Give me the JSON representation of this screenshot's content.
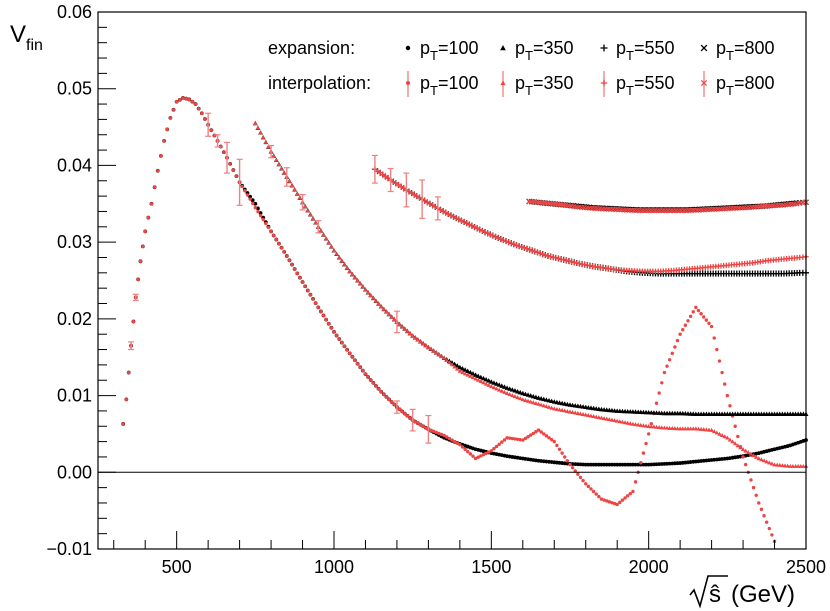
{
  "chart_data": {
    "type": "scatter",
    "title": "",
    "ylabel": "V_fin",
    "ylabel_main": "V",
    "ylabel_sub": "fin",
    "xlabel": "√ŝ (GeV)",
    "xlabel_radical_arg": "ŝ",
    "xlabel_unit": "(GeV)",
    "xlim": [
      250,
      2500
    ],
    "ylim": [
      -0.01,
      0.06
    ],
    "xticks": [
      500,
      1000,
      1500,
      2000,
      2500
    ],
    "xtick_labels": [
      "500",
      "1000",
      "1500",
      "2000",
      "2500"
    ],
    "yticks": [
      -0.01,
      0.0,
      0.01,
      0.02,
      0.03,
      0.04,
      0.05,
      0.06
    ],
    "ytick_labels": [
      "−0.01",
      "0.00",
      "0.01",
      "0.02",
      "0.03",
      "0.04",
      "0.05",
      "0.06"
    ],
    "zero_line": true,
    "legend": {
      "position": "top-right",
      "row1_label": "expansion:",
      "row2_label": "interpolation:",
      "entry_prefix": "p",
      "entry_sub": "T",
      "entries": [
        "=100",
        "=350",
        "=550",
        "=800"
      ]
    },
    "colors": {
      "expansion": "#000000",
      "interpolation": "#ee4444",
      "errorbar": "#f08080"
    },
    "series": [
      {
        "name": "expansion pT=100",
        "group": "expansion",
        "marker": "circle",
        "x": [
          330,
          340,
          355,
          370,
          385,
          400,
          420,
          440,
          460,
          480,
          500,
          520,
          540,
          560,
          580,
          600,
          630,
          660,
          700,
          750,
          800,
          850,
          900,
          950,
          1000,
          1050,
          1100,
          1150,
          1200,
          1250,
          1300,
          1350,
          1400,
          1450,
          1500,
          1550,
          1600,
          1650,
          1700,
          1750,
          1800,
          1850,
          1900,
          1950,
          2000,
          2050,
          2100,
          2150,
          2200,
          2250,
          2300,
          2350,
          2400,
          2450,
          2500
        ],
        "y": [
          0.0063,
          0.0095,
          0.0165,
          0.0228,
          0.0275,
          0.0314,
          0.035,
          0.0393,
          0.0432,
          0.0462,
          0.0483,
          0.0488,
          0.0486,
          0.048,
          0.0468,
          0.0453,
          0.0432,
          0.041,
          0.0378,
          0.035,
          0.0314,
          0.0282,
          0.0248,
          0.0215,
          0.0183,
          0.0155,
          0.0128,
          0.0105,
          0.0085,
          0.0068,
          0.0056,
          0.0045,
          0.0037,
          0.003,
          0.0025,
          0.0021,
          0.0018,
          0.0015,
          0.0013,
          0.0011,
          0.001,
          0.001,
          0.001,
          0.001,
          0.001,
          0.0011,
          0.0012,
          0.0014,
          0.0016,
          0.0018,
          0.0021,
          0.0025,
          0.003,
          0.0035,
          0.0042
        ]
      },
      {
        "name": "interpolation pT=100",
        "group": "interpolation",
        "marker": "circle",
        "x": [
          330,
          340,
          355,
          370,
          385,
          400,
          420,
          440,
          460,
          480,
          500,
          520,
          540,
          560,
          580,
          600,
          630,
          660,
          700,
          750,
          800,
          850,
          900,
          950,
          1000,
          1050,
          1100,
          1150,
          1200,
          1250,
          1300,
          1350,
          1400,
          1450,
          1500,
          1550,
          1600,
          1650,
          1700,
          1750,
          1800,
          1850,
          1900,
          1950,
          2000,
          2050,
          2100,
          2150,
          2200,
          2250,
          2300,
          2350,
          2400
        ],
        "y": [
          0.0063,
          0.0095,
          0.0165,
          0.0228,
          0.0275,
          0.0314,
          0.035,
          0.0393,
          0.0432,
          0.0462,
          0.0483,
          0.0488,
          0.0486,
          0.048,
          0.0468,
          0.0453,
          0.0432,
          0.041,
          0.0378,
          0.0345,
          0.0314,
          0.0282,
          0.0248,
          0.0215,
          0.0183,
          0.0155,
          0.0128,
          0.0105,
          0.0085,
          0.0068,
          0.0056,
          0.0048,
          0.0036,
          0.0018,
          0.0028,
          0.0045,
          0.0042,
          0.0055,
          0.004,
          0.001,
          -0.0015,
          -0.0035,
          -0.0042,
          -0.0025,
          0.005,
          0.013,
          0.018,
          0.0215,
          0.019,
          0.01,
          0.002,
          -0.004,
          -0.009
        ],
        "err": [
          0,
          0,
          0.0005,
          0.0004,
          0,
          0,
          0,
          0,
          0,
          0,
          0,
          0,
          0,
          0,
          0,
          0.0015,
          0.0008,
          0.002,
          0.003,
          0,
          0,
          0,
          0,
          0,
          0,
          0,
          0,
          0,
          0.0008,
          0.0014,
          0.0018,
          0,
          0,
          0,
          0,
          0,
          0,
          0,
          0,
          0,
          0,
          0,
          0,
          0,
          0,
          0,
          0,
          0,
          0,
          0,
          0,
          0,
          0
        ]
      },
      {
        "name": "expansion pT=350",
        "group": "expansion",
        "marker": "triangle",
        "x": [
          750,
          800,
          850,
          900,
          950,
          1000,
          1050,
          1100,
          1150,
          1200,
          1250,
          1300,
          1350,
          1400,
          1450,
          1500,
          1550,
          1600,
          1650,
          1700,
          1750,
          1800,
          1850,
          1900,
          1950,
          2000,
          2050,
          2100,
          2150,
          2200,
          2250,
          2300,
          2350,
          2400,
          2450,
          2500
        ],
        "y": [
          0.0455,
          0.0418,
          0.0385,
          0.0352,
          0.032,
          0.0289,
          0.0262,
          0.0238,
          0.0216,
          0.0196,
          0.0178,
          0.0163,
          0.0149,
          0.0137,
          0.0127,
          0.0118,
          0.011,
          0.0103,
          0.0097,
          0.0092,
          0.0088,
          0.0085,
          0.0082,
          0.008,
          0.0079,
          0.0078,
          0.0077,
          0.0077,
          0.0076,
          0.0076,
          0.0076,
          0.0076,
          0.0076,
          0.0076,
          0.0076,
          0.0076
        ]
      },
      {
        "name": "interpolation pT=350",
        "group": "interpolation",
        "marker": "triangle",
        "x": [
          750,
          800,
          850,
          900,
          950,
          1000,
          1050,
          1100,
          1150,
          1200,
          1250,
          1300,
          1350,
          1400,
          1450,
          1500,
          1550,
          1600,
          1650,
          1700,
          1750,
          1800,
          1850,
          1900,
          1950,
          2000,
          2050,
          2100,
          2150,
          2200,
          2250,
          2300,
          2350,
          2400,
          2450,
          2500
        ],
        "y": [
          0.0455,
          0.0418,
          0.0385,
          0.0352,
          0.032,
          0.0289,
          0.0262,
          0.0238,
          0.0216,
          0.0196,
          0.0178,
          0.0163,
          0.0149,
          0.0132,
          0.0122,
          0.0112,
          0.0103,
          0.0095,
          0.0089,
          0.0083,
          0.0079,
          0.0075,
          0.0071,
          0.0067,
          0.0063,
          0.006,
          0.0058,
          0.0057,
          0.0057,
          0.0055,
          0.0045,
          0.003,
          0.0018,
          0.001,
          0.0008,
          0.0008
        ],
        "err": [
          0,
          0.0008,
          0.0012,
          0.001,
          0.0008,
          0,
          0,
          0,
          0,
          0.0014,
          0,
          0,
          0,
          0,
          0,
          0,
          0,
          0,
          0,
          0,
          0,
          0,
          0,
          0,
          0,
          0,
          0,
          0,
          0,
          0,
          0,
          0,
          0,
          0,
          0,
          0
        ]
      },
      {
        "name": "expansion pT=550",
        "group": "expansion",
        "marker": "plus",
        "x": [
          1130,
          1180,
          1230,
          1280,
          1330,
          1380,
          1430,
          1480,
          1530,
          1580,
          1630,
          1680,
          1730,
          1780,
          1830,
          1880,
          1930,
          1980,
          2030,
          2080,
          2130,
          2180,
          2230,
          2280,
          2330,
          2380,
          2430,
          2480,
          2500
        ],
        "y": [
          0.0395,
          0.0381,
          0.0368,
          0.0356,
          0.0344,
          0.0333,
          0.0323,
          0.0313,
          0.0304,
          0.0296,
          0.0289,
          0.0282,
          0.0277,
          0.0272,
          0.0268,
          0.0265,
          0.0262,
          0.026,
          0.0259,
          0.0259,
          0.0259,
          0.0259,
          0.0259,
          0.0259,
          0.0259,
          0.0259,
          0.0259,
          0.026,
          0.026
        ]
      },
      {
        "name": "interpolation pT=550",
        "group": "interpolation",
        "marker": "plus",
        "x": [
          1130,
          1180,
          1230,
          1280,
          1330,
          1380,
          1430,
          1480,
          1530,
          1580,
          1630,
          1680,
          1730,
          1780,
          1830,
          1880,
          1930,
          1980,
          2030,
          2080,
          2130,
          2180,
          2230,
          2280,
          2330,
          2380,
          2430,
          2480,
          2500
        ],
        "y": [
          0.0395,
          0.0381,
          0.0368,
          0.0356,
          0.0344,
          0.0333,
          0.0323,
          0.0313,
          0.0304,
          0.0296,
          0.0289,
          0.0282,
          0.0277,
          0.0272,
          0.0268,
          0.0265,
          0.0263,
          0.0262,
          0.0262,
          0.0263,
          0.0265,
          0.0267,
          0.0269,
          0.0271,
          0.0273,
          0.0276,
          0.0278,
          0.028,
          0.0281
        ],
        "err": [
          0.0018,
          0.0015,
          0.0022,
          0.0025,
          0.0015,
          0,
          0,
          0,
          0,
          0,
          0,
          0,
          0,
          0,
          0,
          0,
          0,
          0,
          0,
          0,
          0,
          0,
          0,
          0,
          0,
          0,
          0,
          0,
          0
        ]
      },
      {
        "name": "expansion pT=800",
        "group": "expansion",
        "marker": "cross",
        "x": [
          1620,
          1670,
          1720,
          1770,
          1820,
          1870,
          1920,
          1970,
          2020,
          2070,
          2120,
          2170,
          2220,
          2270,
          2320,
          2370,
          2420,
          2470,
          2500
        ],
        "y": [
          0.0353,
          0.0351,
          0.0349,
          0.0347,
          0.0345,
          0.0344,
          0.0343,
          0.0342,
          0.0342,
          0.0342,
          0.0342,
          0.0343,
          0.0344,
          0.0345,
          0.0346,
          0.0347,
          0.0349,
          0.0351,
          0.0352
        ]
      },
      {
        "name": "interpolation pT=800",
        "group": "interpolation",
        "marker": "cross",
        "x": [
          1620,
          1670,
          1720,
          1770,
          1820,
          1870,
          1920,
          1970,
          2020,
          2070,
          2120,
          2170,
          2220,
          2270,
          2320,
          2370,
          2420,
          2470,
          2500
        ],
        "y": [
          0.0353,
          0.0351,
          0.0349,
          0.0346,
          0.0344,
          0.0343,
          0.0342,
          0.0341,
          0.0341,
          0.0341,
          0.0341,
          0.0342,
          0.0343,
          0.0344,
          0.0345,
          0.0347,
          0.0348,
          0.035,
          0.0352
        ],
        "err": [
          0,
          0,
          0,
          0,
          0,
          0,
          0,
          0,
          0,
          0,
          0,
          0,
          0,
          0,
          0,
          0,
          0,
          0,
          0
        ]
      }
    ]
  }
}
